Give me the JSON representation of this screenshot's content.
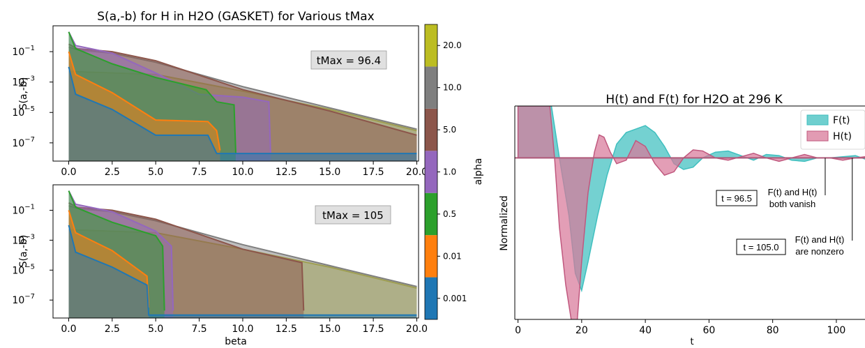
{
  "left_title": "S(a,-b) for H in H2O (GASKET) for Various tMax",
  "right_title": "H(t) and F(t) for H2O at 296 K",
  "colorbar": {
    "label": "alpha",
    "ticks": [
      "0.001",
      "0.01",
      "0.5",
      "1.0",
      "5.0",
      "10.0",
      "20.0"
    ],
    "colors": [
      "#1f77b4",
      "#ff7f0e",
      "#2ca02c",
      "#9467bd",
      "#8c564b",
      "#7f7f7f",
      "#bcbd22"
    ]
  },
  "chart_data": [
    {
      "type": "area",
      "ylabel": "S(a,-b)",
      "xlabel": "",
      "xlim": [
        -0.9,
        20.1
      ],
      "ylim_log10": [
        -8.2,
        0.7
      ],
      "log_y": true,
      "x_ticks": [
        "0.0",
        "2.5",
        "5.0",
        "7.5",
        "10.0",
        "12.5",
        "15.0",
        "17.5",
        "20.0"
      ],
      "y_ticks": [
        "10^-1",
        "10^-3",
        "10^-5",
        "10^-7"
      ],
      "annotation": "tMax = 96.4",
      "series": [
        {
          "alpha": "20.0",
          "x": [
            0,
            5,
            10,
            15,
            20
          ],
          "log10_y": [
            -2.3,
            -2.5,
            -3.6,
            -4.8,
            -6.2
          ]
        },
        {
          "alpha": "10.0",
          "x": [
            0,
            0.6,
            2.5,
            5,
            10,
            15,
            20
          ],
          "log10_y": [
            -0.7,
            -0.9,
            -1.1,
            -1.7,
            -3.3,
            -4.7,
            -6.1
          ]
        },
        {
          "alpha": "5.0",
          "x": [
            0,
            0.5,
            2.5,
            5,
            10,
            15,
            20
          ],
          "log10_y": [
            -0.5,
            -0.8,
            -1.0,
            -1.6,
            -3.5,
            -4.9,
            -6.5
          ]
        },
        {
          "alpha": "1.0",
          "x": [
            0,
            0.4,
            2.5,
            5,
            7.5,
            10,
            11.5,
            11.6
          ],
          "log10_y": [
            0.3,
            -0.6,
            -1.1,
            -2.4,
            -3.8,
            -4.0,
            -4.3,
            -7.7
          ]
        },
        {
          "alpha": "0.5",
          "x": [
            0,
            0.4,
            2.5,
            5,
            7.9,
            8.5,
            9.5,
            9.6
          ],
          "log10_y": [
            0.3,
            -0.8,
            -1.8,
            -2.7,
            -3.5,
            -4.3,
            -4.5,
            -7.7
          ]
        },
        {
          "alpha": "0.01",
          "x": [
            0,
            0.4,
            2.5,
            5,
            8,
            8.5,
            8.7
          ],
          "log10_y": [
            -1.0,
            -2.5,
            -3.7,
            -5.5,
            -5.6,
            -6.2,
            -7.5
          ]
        },
        {
          "alpha": "0.001",
          "x": [
            0,
            0.4,
            2.5,
            5,
            8,
            8.5,
            20
          ],
          "log10_y": [
            -2.0,
            -3.8,
            -4.8,
            -6.5,
            -6.5,
            -7.7,
            -7.7
          ]
        }
      ]
    },
    {
      "type": "area",
      "ylabel": "S(a,-b)",
      "xlabel": "beta",
      "xlim": [
        -0.9,
        20.1
      ],
      "ylim_log10": [
        -8.2,
        0.7
      ],
      "log_y": true,
      "x_ticks": [
        "0.0",
        "2.5",
        "5.0",
        "7.5",
        "10.0",
        "12.5",
        "15.0",
        "17.5",
        "20.0"
      ],
      "y_ticks": [
        "10^-1",
        "10^-3",
        "10^-5",
        "10^-7"
      ],
      "annotation": "tMax = 105",
      "series": [
        {
          "alpha": "20.0",
          "x": [
            0,
            5,
            10,
            15,
            20
          ],
          "log10_y": [
            -2.3,
            -2.5,
            -3.6,
            -4.8,
            -6.2
          ]
        },
        {
          "alpha": "10.0",
          "x": [
            0,
            0.6,
            2.5,
            5,
            10,
            15,
            20
          ],
          "log10_y": [
            -0.7,
            -0.9,
            -1.1,
            -1.7,
            -3.3,
            -4.7,
            -6.1
          ]
        },
        {
          "alpha": "5.0",
          "x": [
            0,
            0.5,
            2.5,
            5,
            10,
            13.4,
            13.5
          ],
          "log10_y": [
            -0.5,
            -0.8,
            -1.0,
            -1.6,
            -3.6,
            -4.5,
            -7.7
          ]
        },
        {
          "alpha": "1.0",
          "x": [
            0,
            0.4,
            2.5,
            5,
            5.9,
            6.0
          ],
          "log10_y": [
            0.3,
            -0.6,
            -1.1,
            -2.4,
            -3.4,
            -7.7
          ]
        },
        {
          "alpha": "0.5",
          "x": [
            0,
            0.4,
            2.5,
            5,
            5.4,
            5.5
          ],
          "log10_y": [
            0.3,
            -0.8,
            -1.8,
            -2.7,
            -3.4,
            -7.7
          ]
        },
        {
          "alpha": "0.01",
          "x": [
            0,
            0.4,
            2.5,
            4.5,
            4.6
          ],
          "log10_y": [
            -1.0,
            -2.5,
            -3.7,
            -5.4,
            -7.5
          ]
        },
        {
          "alpha": "0.001",
          "x": [
            0,
            0.4,
            2.5,
            4.5,
            4.6,
            20
          ],
          "log10_y": [
            -2.0,
            -3.8,
            -4.8,
            -6.0,
            -8.0,
            -8.0
          ]
        }
      ]
    },
    {
      "type": "area",
      "title": "H(t) and F(t) for H2O at 296 K",
      "xlabel": "t",
      "ylabel": "Normalized",
      "xlim": [
        -1,
        109
      ],
      "ylim": [
        -1.4,
        0.45
      ],
      "x_ticks": [
        "0",
        "20",
        "40",
        "60",
        "80",
        "100"
      ],
      "legend": [
        "F(t)",
        "H(t)"
      ],
      "legend_placement": "top-right",
      "series": [
        {
          "name": "F(t)",
          "color": "#3fbfbf",
          "x": [
            0,
            9.5,
            10.5,
            13,
            16,
            18,
            20,
            22,
            25,
            28,
            31,
            34,
            37,
            40,
            43,
            46,
            49,
            52,
            55,
            58,
            62,
            66,
            70,
            74,
            78,
            82,
            86,
            90,
            94,
            98,
            102,
            106,
            109
          ],
          "y": [
            0.45,
            0.45,
            0.45,
            0.0,
            -0.5,
            -1.0,
            -1.15,
            -0.9,
            -0.5,
            -0.15,
            0.12,
            0.22,
            0.25,
            0.28,
            0.22,
            0.1,
            -0.05,
            -0.1,
            -0.08,
            0.0,
            0.05,
            0.06,
            0.02,
            -0.02,
            0.03,
            0.02,
            -0.02,
            -0.03,
            0.0,
            0.0,
            0.01,
            0.02,
            -0.01
          ]
        },
        {
          "name": "H(t)",
          "color": "#d8799a",
          "x": [
            0,
            10,
            11.5,
            13,
            15,
            17,
            18.5,
            20,
            22,
            24,
            25.5,
            27,
            29,
            31,
            34,
            37,
            40,
            43,
            46,
            49,
            52,
            55,
            58,
            62,
            66,
            70,
            74,
            78,
            82,
            86,
            90,
            94,
            98,
            102,
            106,
            109
          ],
          "y": [
            0.45,
            0.45,
            0.0,
            -0.6,
            -1.1,
            -1.45,
            -1.45,
            -0.9,
            -0.3,
            0.05,
            0.2,
            0.18,
            0.05,
            -0.05,
            -0.02,
            0.15,
            0.1,
            -0.05,
            -0.15,
            -0.12,
            0.0,
            0.07,
            0.06,
            0.0,
            -0.02,
            0.01,
            0.04,
            0.0,
            -0.03,
            0.0,
            0.03,
            0.0,
            0.0,
            -0.02,
            0.0,
            0.01
          ]
        }
      ],
      "annotations": [
        {
          "box": "t = 96.5",
          "text": [
            "F(t) and H(t)",
            "both vanish"
          ],
          "x": 96.5
        },
        {
          "box": "t = 105.0",
          "text": [
            "F(t) and H(t)",
            "are nonzero"
          ],
          "x": 105.0
        }
      ]
    }
  ]
}
